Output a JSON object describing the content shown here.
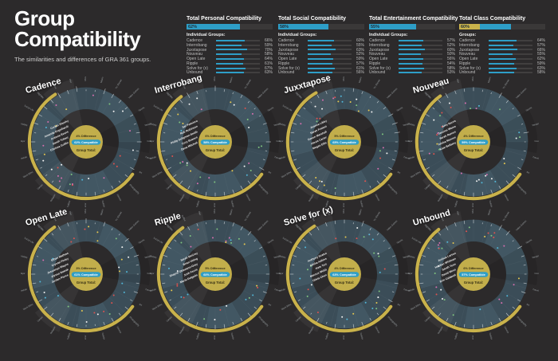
{
  "page": {
    "title_line1": "Group",
    "title_line2": "Compatibility",
    "subtitle": "The similarities and differences of GRA 361 groups."
  },
  "palette": {
    "background": "#2c2a2b",
    "blue": "#2e9ec7",
    "yellow": "#c9b24b",
    "donut": "#3b4d58",
    "donut_light": "#49616e",
    "center": "#c2ae4b",
    "center_text": "#332d14",
    "dot_colors": [
      "#e0524e",
      "#e6c84f",
      "#7fc47f",
      "#f2f2f2",
      "#52b7d8",
      "#d66fb0"
    ]
  },
  "ring_categories": [
    "Movies",
    "Music",
    "TV Shows",
    "Video Games",
    "Sports",
    "Reading",
    "Cooking",
    "Travel",
    "Art",
    "Photography",
    "Fitness",
    "Outdoors",
    "Humor",
    "Politics",
    "Religion",
    "Values",
    "Work Ethic",
    "Schedule",
    "Major",
    "Study Habits",
    "Social Life",
    "Nightlife",
    "Coffee",
    "Diet"
  ],
  "summary_panels": [
    {
      "title": "Total Personal Compatibility",
      "total": "62%",
      "bar": {
        "yellow": 0,
        "blue": 62
      },
      "groups_label": "Individual Groups:",
      "groups": [
        {
          "name": "Cadence",
          "value": 66
        },
        {
          "name": "Interrobang",
          "value": 59
        },
        {
          "name": "Juxxtapose",
          "value": 70
        },
        {
          "name": "Nouveau",
          "value": 58
        },
        {
          "name": "Open Late",
          "value": 64
        },
        {
          "name": "Ripple",
          "value": 61
        },
        {
          "name": "Solve for (x)",
          "value": 67
        },
        {
          "name": "Unbound",
          "value": 63
        }
      ]
    },
    {
      "title": "Total Social Compatibility",
      "total": "58%",
      "bar": {
        "yellow": 0,
        "blue": 58
      },
      "groups_label": "Individual Groups:",
      "groups": [
        {
          "name": "Cadence",
          "value": 60
        },
        {
          "name": "Interrobang",
          "value": 55
        },
        {
          "name": "Juxxtapose",
          "value": 63
        },
        {
          "name": "Nouveau",
          "value": 52
        },
        {
          "name": "Open Late",
          "value": 59
        },
        {
          "name": "Ripple",
          "value": 57
        },
        {
          "name": "Solve for (x)",
          "value": 61
        },
        {
          "name": "Unbound",
          "value": 56
        }
      ]
    },
    {
      "title": "Total Entertainment Compatibility",
      "total": "55%",
      "bar": {
        "yellow": 0,
        "blue": 55
      },
      "groups_label": "Individual Groups:",
      "groups": [
        {
          "name": "Cadence",
          "value": 57
        },
        {
          "name": "Interrobang",
          "value": 52
        },
        {
          "name": "Juxxtapose",
          "value": 60
        },
        {
          "name": "Nouveau",
          "value": 50
        },
        {
          "name": "Open Late",
          "value": 56
        },
        {
          "name": "Ripple",
          "value": 54
        },
        {
          "name": "Solve for (x)",
          "value": 58
        },
        {
          "name": "Unbound",
          "value": 53
        }
      ]
    },
    {
      "title": "Total Class Compatibility",
      "total": "60%",
      "bar": {
        "yellow": 24,
        "blue": 36
      },
      "groups_label": "Groups:",
      "groups": [
        {
          "name": "Cadence",
          "value": 64
        },
        {
          "name": "Interrobang",
          "value": 57
        },
        {
          "name": "Juxxtapose",
          "value": 66
        },
        {
          "name": "Nouveau",
          "value": 55
        },
        {
          "name": "Open Late",
          "value": 62
        },
        {
          "name": "Ripple",
          "value": 59
        },
        {
          "name": "Solve for (x)",
          "value": 63
        },
        {
          "name": "Unbound",
          "value": 58
        }
      ]
    }
  ],
  "charts": [
    {
      "name": "Cadence",
      "difference_label": "4% Difference",
      "compatible_label": "62% Compatible",
      "total_label": "Group Total:",
      "difference_pct": 4,
      "compatible_pct": 62,
      "members": [
        "Corbin Sheehy",
        "Amanda Engelhardt",
        "Antavia Evans",
        "Sarah Tokarz",
        "Chelsea Griffin"
      ]
    },
    {
      "name": "Interrobang",
      "difference_label": "6% Difference",
      "compatible_label": "58% Compatible",
      "total_label": "Group Total:",
      "difference_pct": 6,
      "compatible_pct": 58,
      "members": [
        "Sal Palmiero",
        "Rob Robinson",
        "Philip Seligman-Smith",
        "Cory Bowers",
        "Dana Mitchell"
      ]
    },
    {
      "name": "Juxxtapose",
      "difference_label": "5% Difference",
      "compatible_label": "65% Compatible",
      "total_label": "Group Total:",
      "difference_pct": 5,
      "compatible_pct": 65,
      "members": [
        "Joanna Libby",
        "Sarah Fratoni",
        "Devon Marshall",
        "Alexis Carter",
        "Megan Ellis"
      ]
    },
    {
      "name": "Nouveau",
      "difference_label": "4% Difference",
      "compatible_label": "59% Compatible",
      "total_label": "Group Total:",
      "difference_pct": 4,
      "compatible_pct": 59,
      "members": [
        "Amy Norris",
        "Jessica Warne",
        "Sarah Ramos",
        "Alisha Monroe",
        "Kate Bellamy"
      ]
    },
    {
      "name": "Open Late",
      "difference_label": "3% Difference",
      "compatible_label": "61% Compatible",
      "total_label": "Group Total:",
      "difference_pct": 3,
      "compatible_pct": 61,
      "members": [
        "Ethan Mathias",
        "Crystal Finley",
        "Jessamyn Wayne",
        "Alyssa Nowak",
        "Jordan Pierce"
      ]
    },
    {
      "name": "Ripple",
      "difference_label": "5% Difference",
      "compatible_label": "60% Compatible",
      "total_label": "Group Total:",
      "difference_pct": 5,
      "compatible_pct": 60,
      "members": [
        "Sarah McCray",
        "Brian Utting",
        "Shayne Ottaviano-Gray",
        "Josh Ferris",
        "Maria Delgado"
      ]
    },
    {
      "name": "Solve for (x)",
      "difference_label": "4% Difference",
      "compatible_label": "63% Compatible",
      "total_label": "Group Total:",
      "difference_pct": 4,
      "compatible_pct": 63,
      "members": [
        "Anthony Scalzo",
        "Alisha Adkins",
        "Kate Tort",
        "Marcus Webb",
        "Olivia Chen"
      ]
    },
    {
      "name": "Unbound",
      "difference_label": "6% Difference",
      "compatible_label": "57% Compatible",
      "total_label": "Group Total:",
      "difference_pct": 6,
      "compatible_pct": 57,
      "members": [
        "Joshua Larsen",
        "Heather Whitman",
        "Sarah Tenn",
        "David Moss",
        "Erin Caldwell"
      ]
    }
  ],
  "chart_data": [
    {
      "type": "bar",
      "title": "Total Personal Compatibility",
      "categories": [
        "Cadence",
        "Interrobang",
        "Juxxtapose",
        "Nouveau",
        "Open Late",
        "Ripple",
        "Solve for (x)",
        "Unbound"
      ],
      "values": [
        66,
        59,
        70,
        58,
        64,
        61,
        67,
        63
      ],
      "total": 62,
      "ylim": [
        0,
        100
      ]
    },
    {
      "type": "bar",
      "title": "Total Social Compatibility",
      "categories": [
        "Cadence",
        "Interrobang",
        "Juxxtapose",
        "Nouveau",
        "Open Late",
        "Ripple",
        "Solve for (x)",
        "Unbound"
      ],
      "values": [
        60,
        55,
        63,
        52,
        59,
        57,
        61,
        56
      ],
      "total": 58,
      "ylim": [
        0,
        100
      ]
    },
    {
      "type": "bar",
      "title": "Total Entertainment Compatibility",
      "categories": [
        "Cadence",
        "Interrobang",
        "Juxxtapose",
        "Nouveau",
        "Open Late",
        "Ripple",
        "Solve for (x)",
        "Unbound"
      ],
      "values": [
        57,
        52,
        60,
        50,
        56,
        54,
        58,
        53
      ],
      "total": 55,
      "ylim": [
        0,
        100
      ]
    },
    {
      "type": "bar",
      "title": "Total Class Compatibility",
      "categories": [
        "Cadence",
        "Interrobang",
        "Juxxtapose",
        "Nouveau",
        "Open Late",
        "Ripple",
        "Solve for (x)",
        "Unbound"
      ],
      "values": [
        64,
        57,
        66,
        55,
        62,
        59,
        63,
        58
      ],
      "total": 60,
      "ylim": [
        0,
        100
      ]
    },
    {
      "type": "pie",
      "title": "Group compatibility wheels",
      "categories": [
        "Cadence",
        "Interrobang",
        "Juxxtapose",
        "Nouveau",
        "Open Late",
        "Ripple",
        "Solve for (x)",
        "Unbound"
      ],
      "series": [
        {
          "name": "Compatible %",
          "values": [
            62,
            58,
            65,
            59,
            61,
            60,
            63,
            57
          ]
        },
        {
          "name": "Difference %",
          "values": [
            4,
            6,
            5,
            4,
            3,
            5,
            4,
            6
          ]
        }
      ]
    }
  ]
}
